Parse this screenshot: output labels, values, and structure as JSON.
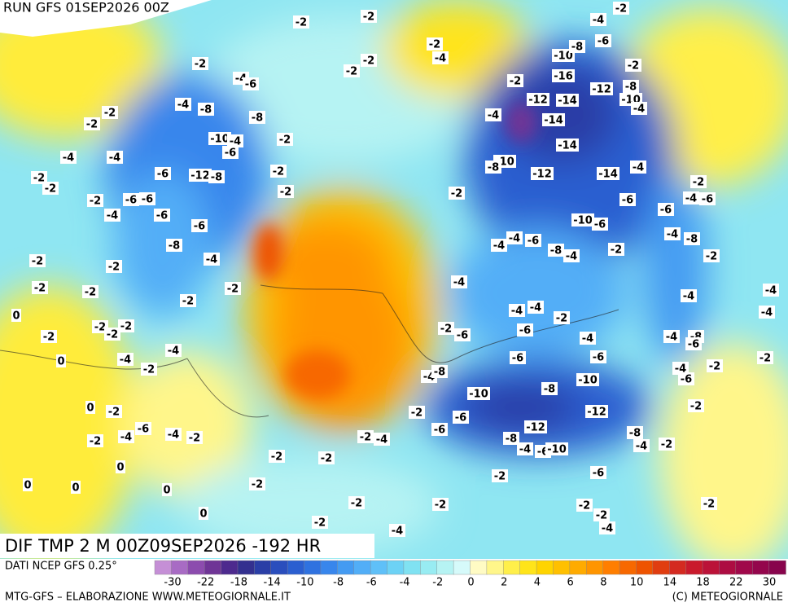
{
  "header": {
    "run": "RUN GFS 01SEP2026 00Z",
    "field": "DIF TMP 2 M 00Z09SEP2026 -192 HR"
  },
  "footer": {
    "source": "DATI NCEP GFS 0.25°",
    "credit": "MTG-GFS – ELABORAZIONE WWW.METEOGIORNALE.IT",
    "copyright": "(C) METEOGIORNALE"
  },
  "legend": {
    "ticks": [
      -30,
      -22,
      -18,
      -14,
      -10,
      -8,
      -6,
      -4,
      -2,
      0,
      2,
      4,
      6,
      8,
      10,
      14,
      18,
      22,
      30
    ],
    "colors": [
      "#c58fd6",
      "#a86bc4",
      "#8c4cae",
      "#6f3596",
      "#4d2a8e",
      "#33308f",
      "#2a3ea6",
      "#2a4ebd",
      "#2b5fd0",
      "#2f72e0",
      "#3886ec",
      "#449bf2",
      "#52aef7",
      "#5fc0f8",
      "#6dd2f5",
      "#80e2f2",
      "#98ecf2",
      "#b6f3f3",
      "#d6fafa",
      "#fffbc4",
      "#fff68a",
      "#ffef4a",
      "#ffe41a",
      "#ffd400",
      "#ffc000",
      "#ffab00",
      "#ff9500",
      "#ff7e00",
      "#f76800",
      "#ee5300",
      "#e03d10",
      "#d42a20",
      "#c91a2c",
      "#bb1238",
      "#ad0c42",
      "#a0084a",
      "#94064c",
      "#88044c"
    ]
  },
  "map": {
    "labels": [
      -2,
      -2,
      -4,
      -2,
      -2,
      -4,
      -2,
      -2,
      -6,
      -2,
      -4,
      -6,
      -10,
      -8,
      -2,
      -2,
      -16,
      -12,
      -8,
      -12,
      -14,
      -10,
      -4,
      -4,
      -8,
      -8,
      -2,
      -2,
      -4,
      -14,
      -10,
      -4,
      -2,
      -6,
      -4,
      -4,
      -14,
      -10,
      -8,
      -6,
      -12,
      -8,
      -2,
      -12,
      -14,
      -4,
      -2,
      -2,
      -2,
      -2,
      -2,
      -2,
      -6,
      -6,
      -6,
      -4,
      -6,
      -6,
      -6,
      -4,
      -6,
      -10,
      -6,
      -8,
      -4,
      -8,
      -4,
      -4,
      -6,
      -8,
      -4,
      -2,
      -4,
      -2,
      -2,
      -2,
      -2,
      -2,
      -2,
      -4,
      -4,
      -4,
      -2,
      -4,
      -4,
      -2,
      -4,
      0,
      -2,
      -2,
      -2,
      -2,
      -6,
      -6,
      -2,
      -4,
      -4,
      -8,
      -6,
      -4,
      -4,
      -6,
      -6,
      0,
      -2,
      -2,
      -4,
      -2,
      -4,
      -8,
      -6,
      -8,
      -10,
      -10,
      0,
      -2,
      -2,
      -2,
      -12,
      -6,
      -6,
      -4,
      -4,
      -2,
      -6,
      -12,
      -2,
      -4,
      -2,
      -8,
      -8,
      -4,
      -6,
      -10,
      -4,
      -2,
      -2,
      -2,
      0,
      -6,
      -2,
      -2,
      0,
      0,
      0,
      -2,
      -2,
      -2,
      -2,
      0,
      -2,
      -2,
      -4,
      -4
    ]
  }
}
